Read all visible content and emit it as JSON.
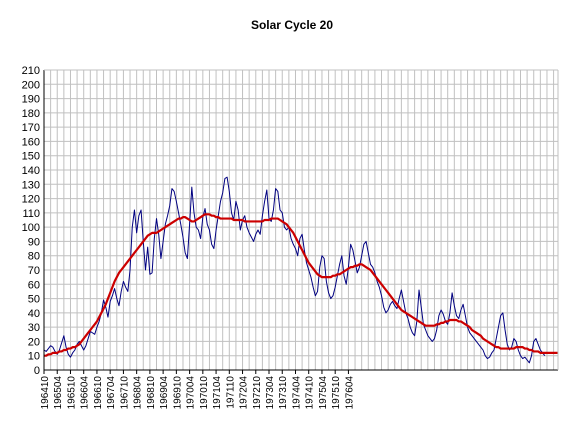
{
  "chart_data": {
    "type": "line",
    "title": "Solar Cycle 20",
    "xlabel": "",
    "ylabel": "",
    "ylim": [
      0,
      210
    ],
    "y_ticks": [
      0,
      10,
      20,
      30,
      40,
      50,
      60,
      70,
      80,
      90,
      100,
      110,
      120,
      130,
      140,
      150,
      160,
      170,
      180,
      190,
      200,
      210
    ],
    "x_tick_labels": [
      "196410",
      "196504",
      "196510",
      "196604",
      "196610",
      "196704",
      "196710",
      "196804",
      "196810",
      "196904",
      "196910",
      "197004",
      "197010",
      "197104",
      "197110",
      "197204",
      "197210",
      "197304",
      "197310",
      "197404",
      "197410",
      "197504",
      "197510",
      "197604"
    ],
    "grid": true,
    "legend": "none",
    "colors": {
      "monthly": "#000080",
      "smoothed": "#cc0000",
      "grid": "#c0c0c0"
    },
    "series": [
      {
        "key": "monthly",
        "x_start": "196410",
        "values": [
          14,
          13,
          15,
          17,
          16,
          13,
          11,
          14,
          19,
          24,
          16,
          11,
          9,
          12,
          14,
          18,
          20,
          17,
          14,
          17,
          22,
          27,
          26,
          25,
          30,
          34,
          40,
          49,
          44,
          37,
          48,
          52,
          57,
          50,
          45,
          55,
          62,
          58,
          55,
          70,
          100,
          112,
          96,
          108,
          112,
          90,
          70,
          86,
          67,
          68,
          92,
          106,
          95,
          78,
          90,
          102,
          108,
          115,
          127,
          125,
          118,
          110,
          102,
          93,
          82,
          78,
          102,
          128,
          110,
          100,
          98,
          92,
          107,
          113,
          102,
          98,
          88,
          85,
          98,
          108,
          118,
          124,
          134,
          135,
          125,
          110,
          105,
          118,
          112,
          98,
          105,
          108,
          100,
          96,
          93,
          90,
          95,
          98,
          95,
          108,
          118,
          126,
          106,
          104,
          112,
          127,
          125,
          112,
          110,
          100,
          98,
          100,
          92,
          88,
          85,
          80,
          92,
          95,
          84,
          75,
          70,
          65,
          58,
          52,
          55,
          72,
          80,
          78,
          62,
          54,
          50,
          52,
          58,
          66,
          74,
          80,
          66,
          60,
          72,
          88,
          84,
          76,
          68,
          72,
          80,
          88,
          90,
          82,
          74,
          72,
          68,
          62,
          58,
          52,
          44,
          40,
          42,
          46,
          48,
          45,
          43,
          50,
          56,
          48,
          40,
          36,
          30,
          26,
          24,
          34,
          56,
          44,
          32,
          28,
          24,
          22,
          20,
          22,
          28,
          38,
          42,
          39,
          34,
          32,
          40,
          54,
          45,
          38,
          36,
          42,
          46,
          38,
          30,
          26,
          24,
          22,
          20,
          18,
          16,
          14,
          10,
          8,
          9,
          12,
          14,
          22,
          30,
          38,
          40,
          28,
          18,
          14,
          16,
          22,
          20,
          14,
          10,
          8,
          9,
          7,
          5,
          10,
          20,
          22,
          18,
          14,
          12,
          10
        ]
      },
      {
        "key": "smoothed",
        "x_start": "196410",
        "values": [
          10,
          10,
          11,
          11,
          12,
          12,
          12,
          13,
          13,
          14,
          14,
          15,
          15,
          16,
          16,
          17,
          18,
          20,
          22,
          24,
          26,
          28,
          30,
          32,
          34,
          37,
          40,
          43,
          46,
          50,
          54,
          58,
          62,
          65,
          68,
          70,
          72,
          74,
          76,
          78,
          80,
          82,
          84,
          86,
          88,
          90,
          92,
          94,
          95,
          96,
          96,
          96,
          97,
          98,
          99,
          100,
          101,
          102,
          103,
          104,
          105,
          106,
          106,
          107,
          107,
          106,
          105,
          104,
          104,
          105,
          106,
          107,
          108,
          109,
          109,
          109,
          108,
          108,
          107,
          107,
          106,
          106,
          106,
          106,
          106,
          106,
          105,
          105,
          105,
          105,
          105,
          104,
          104,
          104,
          104,
          104,
          104,
          104,
          104,
          104,
          105,
          105,
          105,
          106,
          106,
          106,
          106,
          105,
          104,
          103,
          102,
          100,
          98,
          96,
          93,
          90,
          87,
          84,
          81,
          78,
          75,
          73,
          71,
          69,
          67,
          66,
          65,
          65,
          65,
          65,
          65,
          66,
          66,
          67,
          67,
          68,
          69,
          70,
          71,
          72,
          72,
          73,
          73,
          74,
          74,
          73,
          72,
          71,
          70,
          68,
          66,
          64,
          62,
          60,
          58,
          56,
          54,
          52,
          50,
          48,
          46,
          44,
          42,
          41,
          40,
          39,
          38,
          37,
          36,
          35,
          34,
          33,
          32,
          31,
          31,
          31,
          31,
          31,
          32,
          32,
          33,
          33,
          34,
          34,
          35,
          35,
          35,
          35,
          34,
          34,
          33,
          32,
          31,
          30,
          28,
          27,
          26,
          25,
          24,
          22,
          21,
          20,
          19,
          18,
          17,
          16,
          16,
          15,
          15,
          15,
          15,
          15,
          15,
          15,
          16,
          16,
          16,
          16,
          15,
          15,
          14,
          14,
          13,
          13,
          13,
          12,
          12,
          12,
          12,
          12,
          12,
          12,
          12,
          12
        ]
      }
    ]
  }
}
